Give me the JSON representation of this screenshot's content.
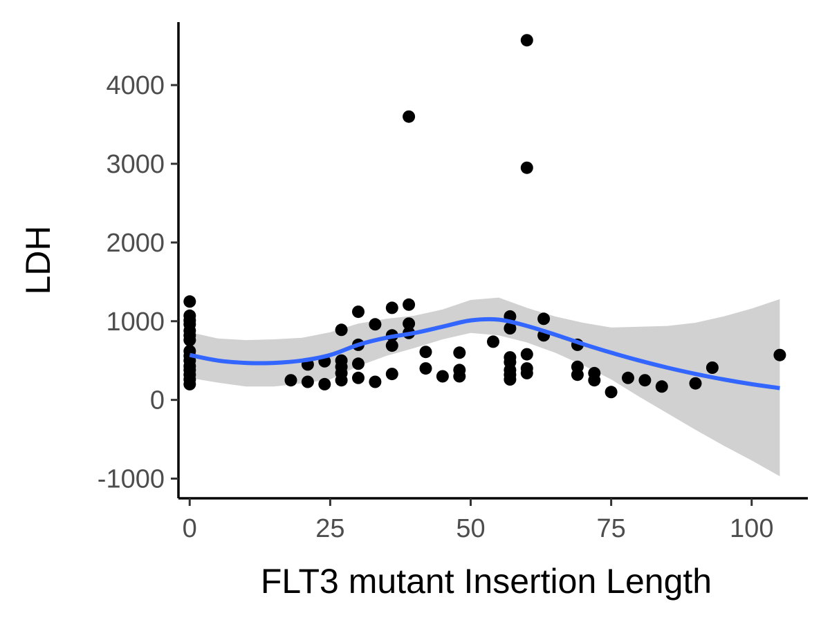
{
  "chart_data": {
    "type": "scatter",
    "title": "",
    "xlabel": "FLT3 mutant Insertion Length",
    "ylabel": "LDH",
    "xlim": [
      -2,
      110
    ],
    "ylim": [
      -1250,
      4800
    ],
    "x_ticks": [
      0,
      25,
      50,
      75,
      100
    ],
    "x_tick_labels": [
      "0",
      "25",
      "50",
      "75",
      "100"
    ],
    "y_ticks": [
      -1000,
      0,
      1000,
      2000,
      3000,
      4000
    ],
    "y_tick_labels": [
      "-1000",
      "0",
      "1000",
      "2000",
      "3000",
      "4000"
    ],
    "grid": false,
    "legend": "none",
    "point_color": "#000000",
    "smooth_color": "#3366ff",
    "band_color": "#cccccc",
    "points": [
      [
        0,
        1250
      ],
      [
        0,
        1070
      ],
      [
        0,
        1010
      ],
      [
        0,
        960
      ],
      [
        0,
        880
      ],
      [
        0,
        820
      ],
      [
        0,
        760
      ],
      [
        0,
        620
      ],
      [
        0,
        560
      ],
      [
        0,
        500
      ],
      [
        0,
        430
      ],
      [
        0,
        380
      ],
      [
        0,
        320
      ],
      [
        0,
        260
      ],
      [
        0,
        200
      ],
      [
        18,
        250
      ],
      [
        21,
        450
      ],
      [
        21,
        230
      ],
      [
        24,
        490
      ],
      [
        24,
        200
      ],
      [
        27,
        890
      ],
      [
        27,
        500
      ],
      [
        27,
        420
      ],
      [
        27,
        340
      ],
      [
        27,
        250
      ],
      [
        30,
        1120
      ],
      [
        30,
        700
      ],
      [
        30,
        460
      ],
      [
        30,
        280
      ],
      [
        33,
        960
      ],
      [
        33,
        230
      ],
      [
        36,
        1170
      ],
      [
        36,
        820
      ],
      [
        36,
        690
      ],
      [
        36,
        330
      ],
      [
        39,
        3600
      ],
      [
        39,
        1210
      ],
      [
        39,
        970
      ],
      [
        39,
        850
      ],
      [
        42,
        610
      ],
      [
        42,
        400
      ],
      [
        45,
        300
      ],
      [
        48,
        600
      ],
      [
        48,
        380
      ],
      [
        48,
        300
      ],
      [
        54,
        740
      ],
      [
        57,
        1060
      ],
      [
        57,
        910
      ],
      [
        57,
        540
      ],
      [
        57,
        480
      ],
      [
        57,
        380
      ],
      [
        57,
        320
      ],
      [
        57,
        260
      ],
      [
        60,
        4570
      ],
      [
        60,
        2950
      ],
      [
        60,
        580
      ],
      [
        60,
        400
      ],
      [
        60,
        340
      ],
      [
        63,
        1030
      ],
      [
        63,
        820
      ],
      [
        69,
        700
      ],
      [
        69,
        420
      ],
      [
        69,
        320
      ],
      [
        72,
        340
      ],
      [
        72,
        250
      ],
      [
        75,
        100
      ],
      [
        78,
        280
      ],
      [
        81,
        250
      ],
      [
        84,
        170
      ],
      [
        90,
        210
      ],
      [
        93,
        410
      ],
      [
        105,
        570
      ]
    ],
    "smooth_fit": {
      "x": [
        0,
        5,
        10,
        15,
        20,
        25,
        30,
        35,
        40,
        45,
        50,
        55,
        60,
        65,
        70,
        75,
        80,
        85,
        90,
        95,
        100,
        105
      ],
      "y": [
        570,
        500,
        470,
        470,
        500,
        570,
        700,
        790,
        850,
        930,
        1010,
        1020,
        940,
        830,
        710,
        600,
        500,
        410,
        330,
        260,
        200,
        150
      ],
      "lower": [
        280,
        220,
        170,
        170,
        210,
        260,
        430,
        560,
        660,
        770,
        850,
        820,
        730,
        600,
        440,
        260,
        40,
        -170,
        -380,
        -580,
        -770,
        -970
      ],
      "upper": [
        860,
        780,
        760,
        770,
        790,
        860,
        970,
        1030,
        1070,
        1150,
        1270,
        1300,
        1170,
        1060,
        980,
        920,
        930,
        940,
        980,
        1060,
        1160,
        1280
      ]
    }
  }
}
